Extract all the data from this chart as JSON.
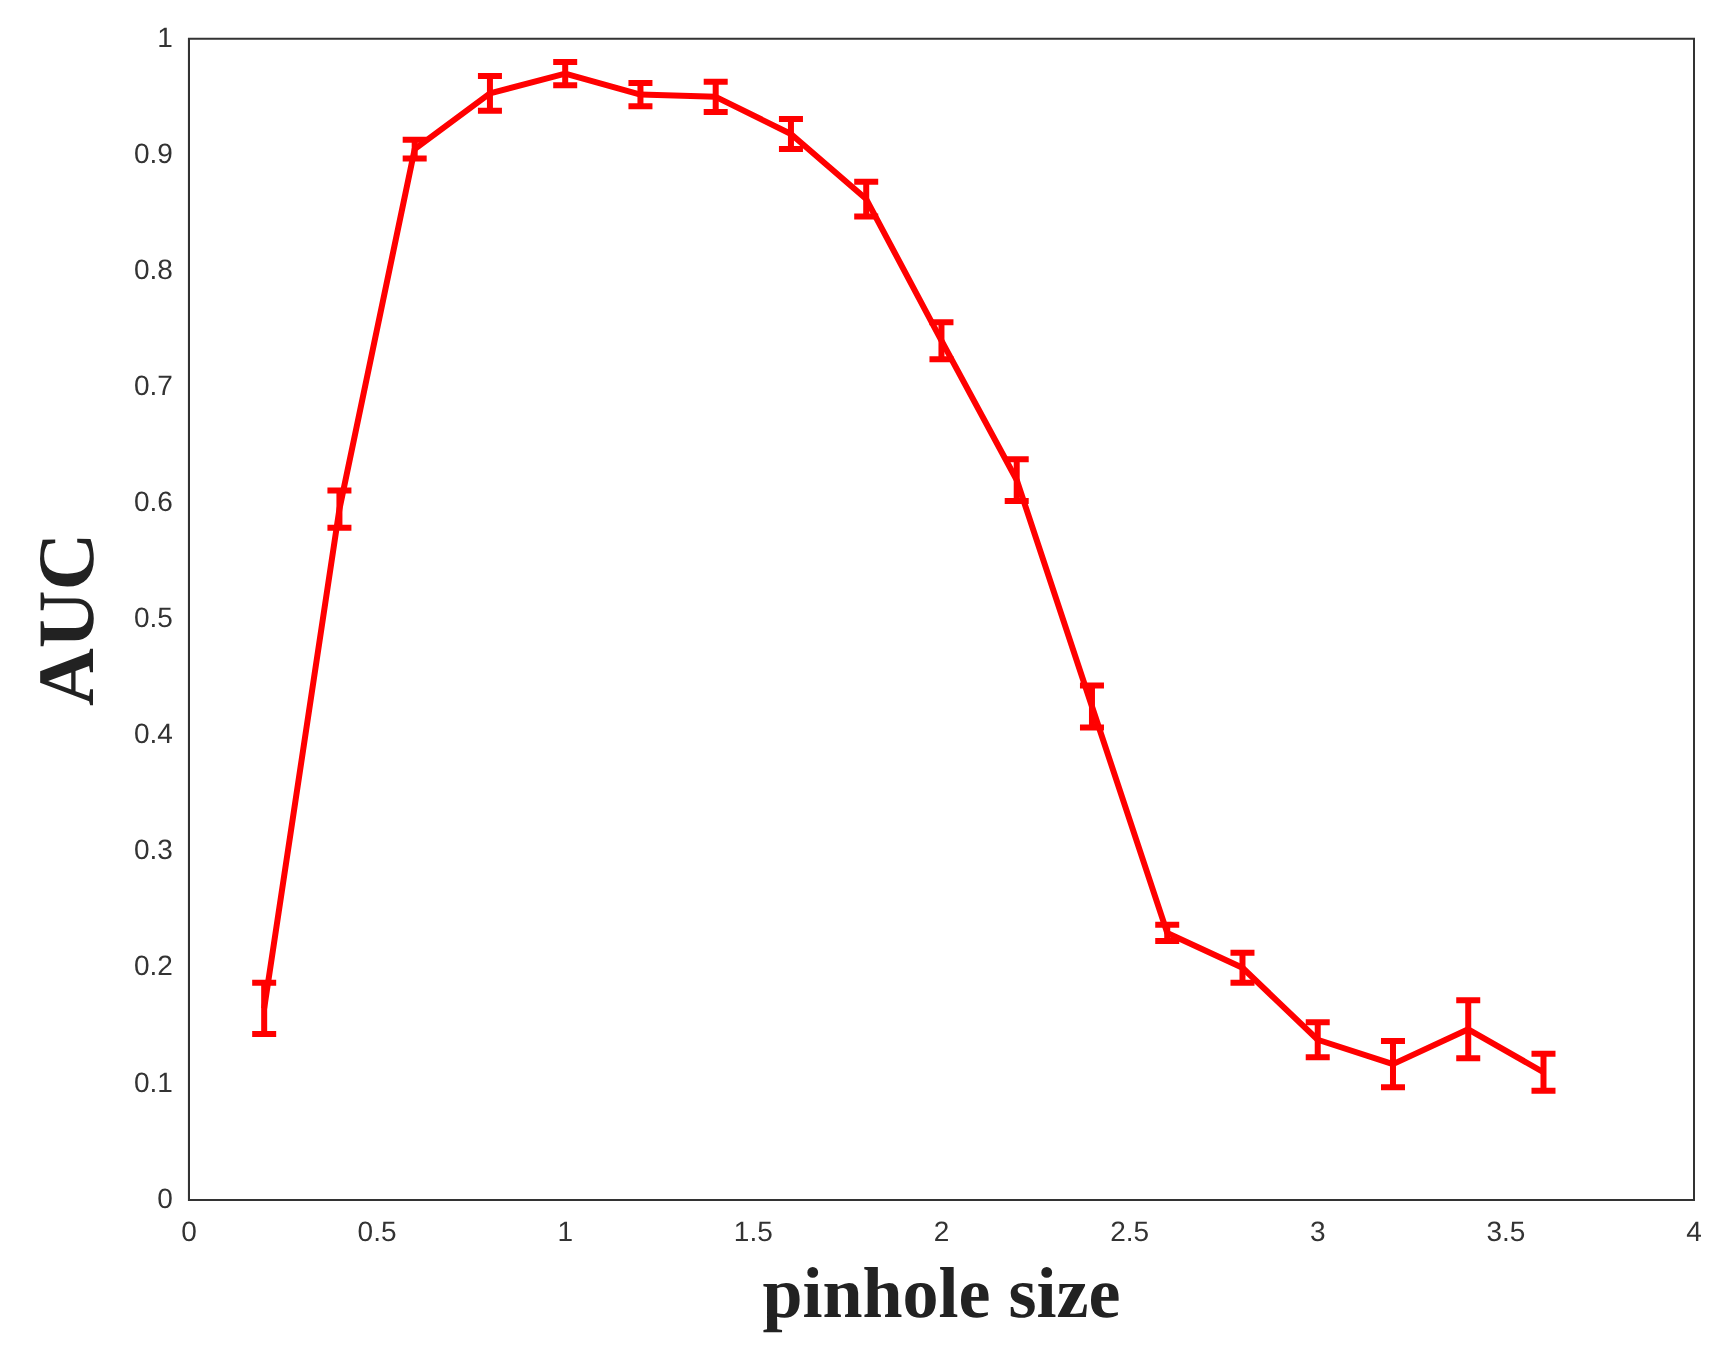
{
  "chart_data": {
    "type": "line",
    "xlabel": "pinhole size",
    "ylabel": "AUC",
    "x": [
      0.2,
      0.4,
      0.6,
      0.8,
      1.0,
      1.2,
      1.4,
      1.6,
      1.8,
      2.0,
      2.2,
      2.4,
      2.6,
      2.8,
      3.0,
      3.2,
      3.4,
      3.6
    ],
    "series": [
      {
        "color": "#ff0000",
        "values": [
          0.165,
          0.595,
          0.905,
          0.953,
          0.97,
          0.952,
          0.95,
          0.918,
          0.862,
          0.74,
          0.62,
          0.425,
          0.23,
          0.2,
          0.138,
          0.117,
          0.147,
          0.11
        ],
        "errors": [
          0.022,
          0.016,
          0.008,
          0.015,
          0.01,
          0.01,
          0.013,
          0.013,
          0.015,
          0.016,
          0.018,
          0.018,
          0.007,
          0.013,
          0.015,
          0.02,
          0.025,
          0.016
        ]
      }
    ],
    "xlim": [
      0,
      4
    ],
    "xticks": [
      0,
      0.5,
      1,
      1.5,
      2,
      2.5,
      3,
      3.5,
      4
    ],
    "ylim": [
      0,
      1
    ],
    "yticks": [
      0,
      0.1,
      0.2,
      0.3,
      0.4,
      0.5,
      0.6,
      0.7,
      0.8,
      0.9,
      1
    ],
    "grid": false,
    "legend": false,
    "line_style": "solid"
  }
}
